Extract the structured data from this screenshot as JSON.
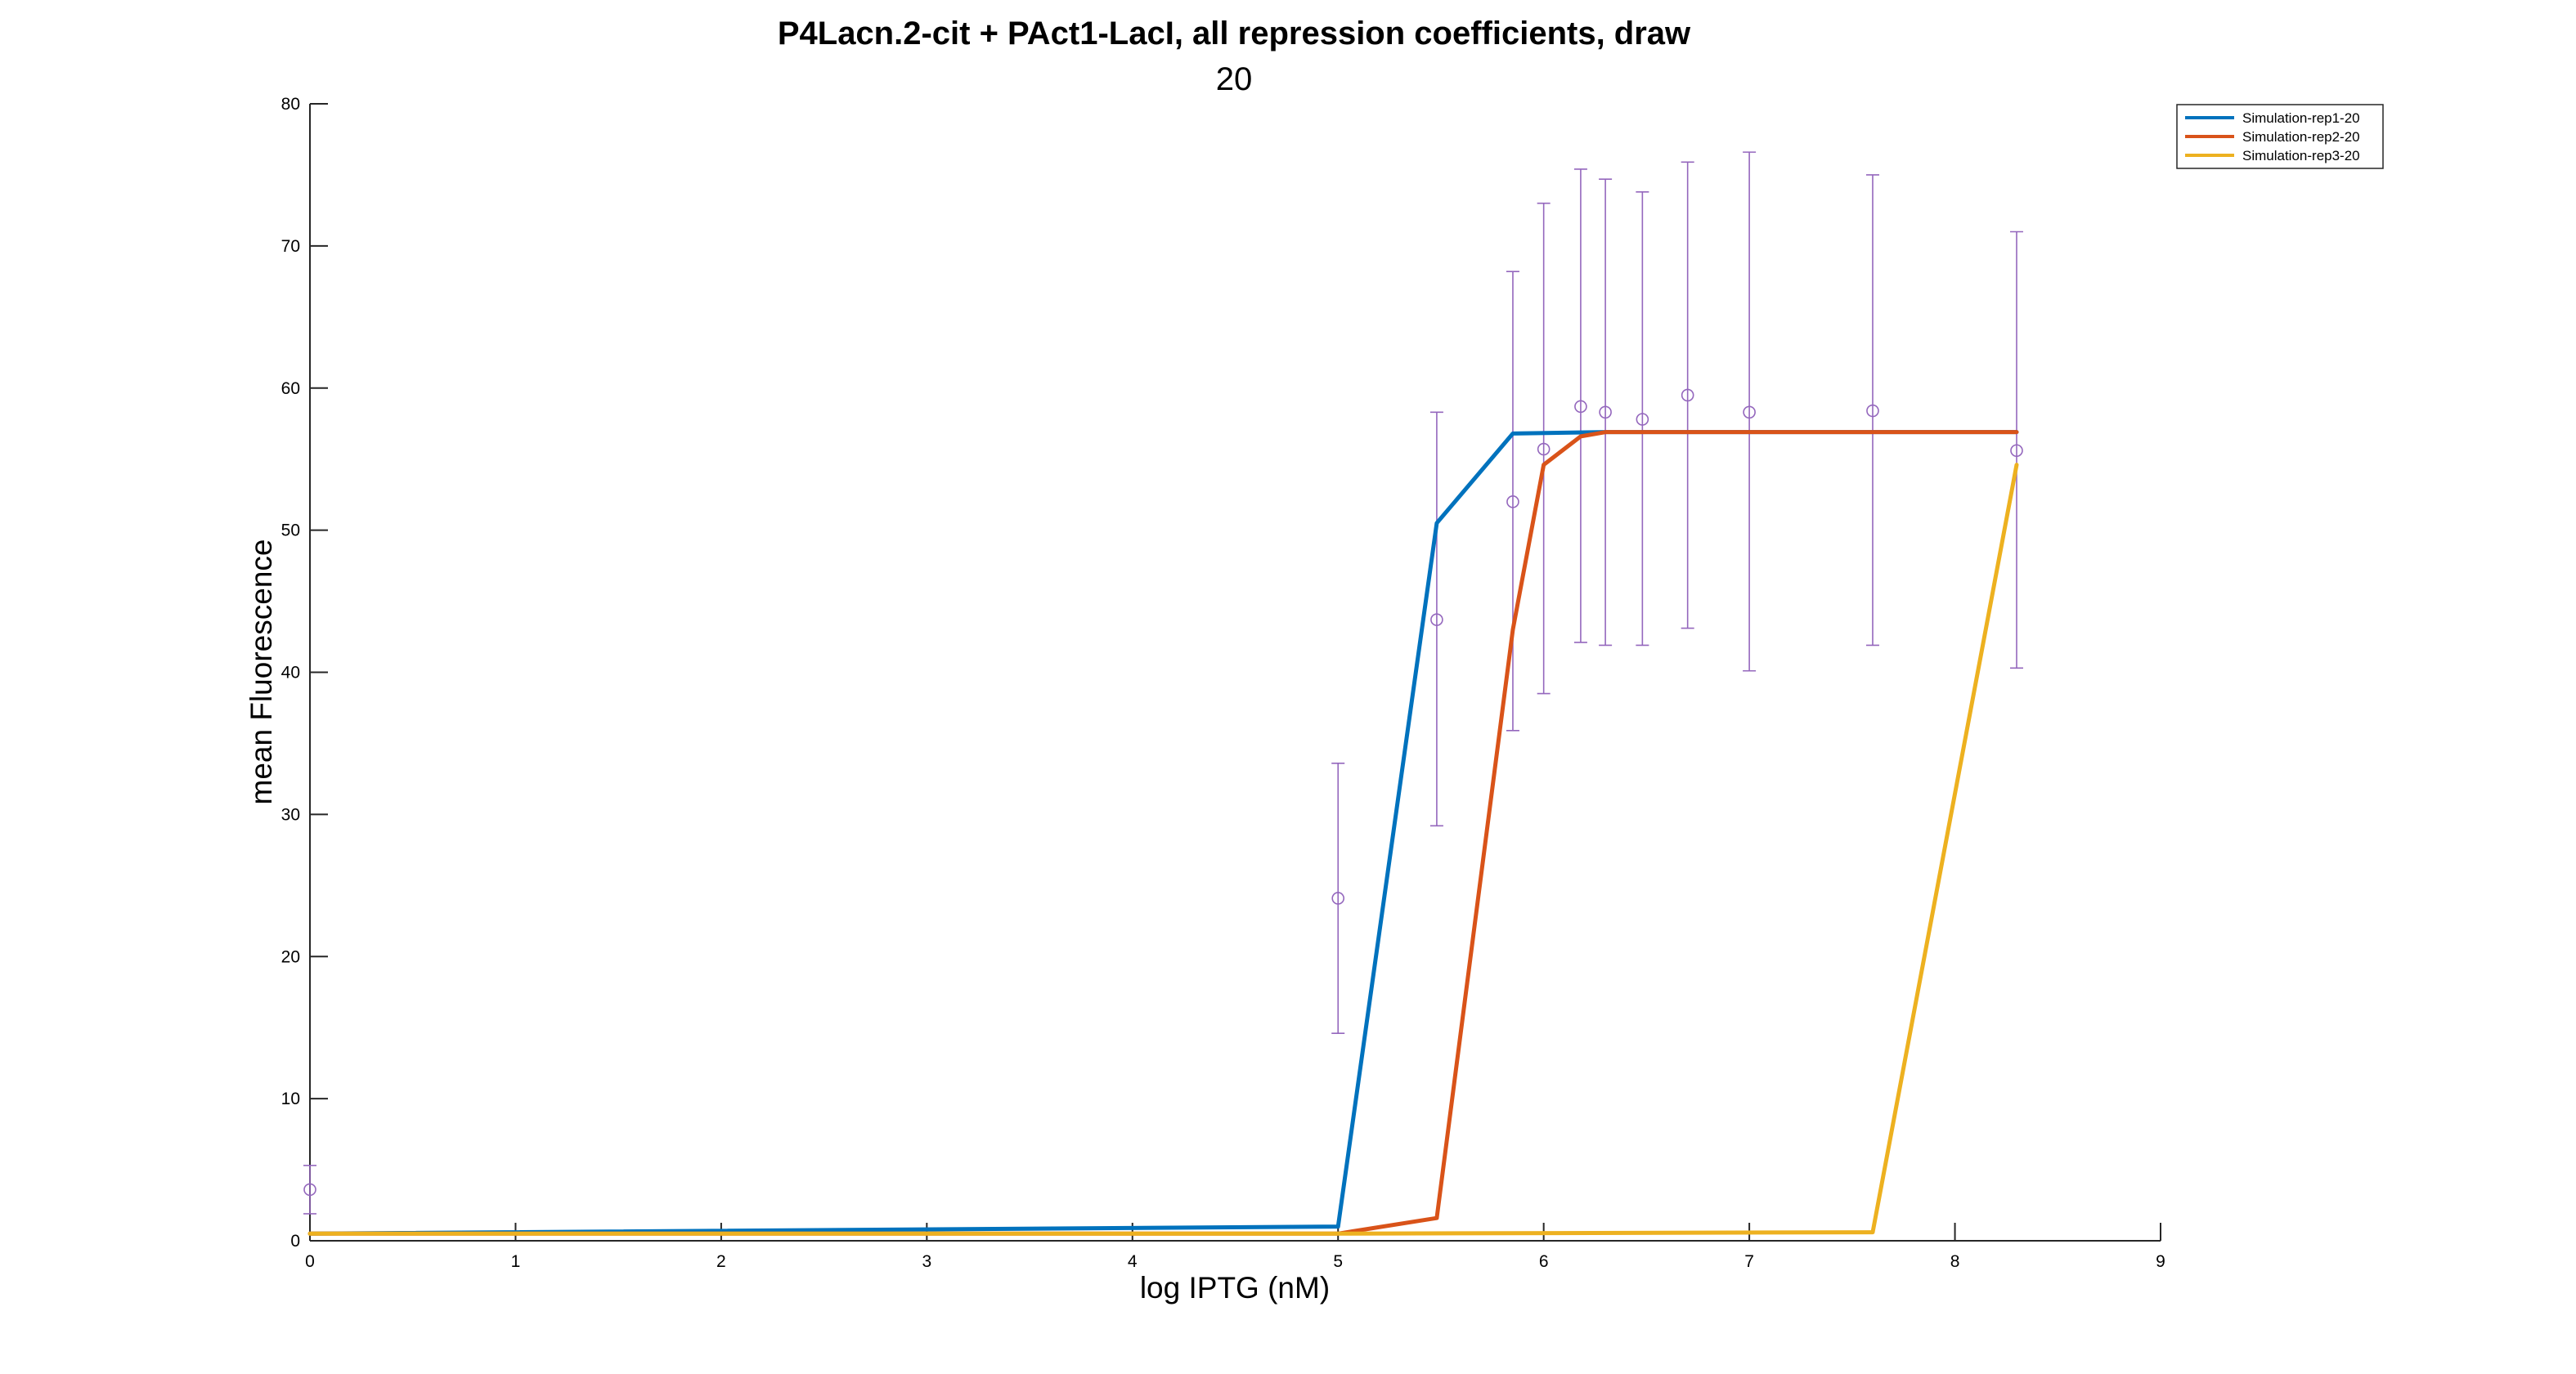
{
  "chart_data": {
    "type": "line",
    "title": "P4Lacn.2-cit + PAct1-LacI, all repression coefficients, draw",
    "title_line2": "20",
    "xlabel": "log IPTG (nM)",
    "ylabel": "mean Fluorescence",
    "xlim": [
      0,
      9
    ],
    "ylim": [
      0,
      80
    ],
    "xticks": [
      "0",
      "1",
      "2",
      "3",
      "4",
      "5",
      "6",
      "7",
      "8",
      "9"
    ],
    "yticks": [
      "0",
      "10",
      "20",
      "30",
      "40",
      "50",
      "60",
      "70",
      "80"
    ],
    "grid": false,
    "legend_position": "top-right",
    "series": [
      {
        "name": "Simulation-rep1-20",
        "color": "#0072BD",
        "x": [
          0,
          5,
          5.48,
          5.85,
          6.3,
          8.3
        ],
        "y": [
          0.5,
          1.0,
          50.5,
          56.8,
          56.9,
          56.9
        ]
      },
      {
        "name": "Simulation-rep2-20",
        "color": "#D95319",
        "x": [
          0,
          5,
          5.48,
          5.85,
          6.0,
          6.18,
          6.3,
          8.3
        ],
        "y": [
          0.5,
          0.5,
          1.6,
          43.0,
          54.6,
          56.6,
          56.9,
          56.9
        ]
      },
      {
        "name": "Simulation-rep3-20",
        "color": "#EDB120",
        "x": [
          0,
          5,
          7.6,
          8.3
        ],
        "y": [
          0.5,
          0.5,
          0.6,
          54.6
        ]
      }
    ],
    "measurements": {
      "color": "#9467BD",
      "marker": "circle",
      "x": [
        0,
        5,
        5.48,
        5.85,
        6.0,
        6.18,
        6.3,
        6.48,
        6.7,
        7.0,
        7.6,
        8.3
      ],
      "y": [
        3.6,
        24.1,
        43.7,
        52.0,
        55.7,
        58.7,
        58.3,
        57.8,
        59.5,
        58.3,
        58.4,
        55.6
      ],
      "low": [
        1.9,
        14.6,
        29.2,
        35.9,
        38.5,
        42.1,
        41.9,
        41.9,
        43.1,
        40.1,
        41.9,
        40.3
      ],
      "high": [
        5.3,
        33.6,
        58.3,
        68.2,
        73.0,
        75.4,
        74.7,
        73.8,
        75.9,
        76.6,
        75.0,
        71.0
      ]
    }
  }
}
